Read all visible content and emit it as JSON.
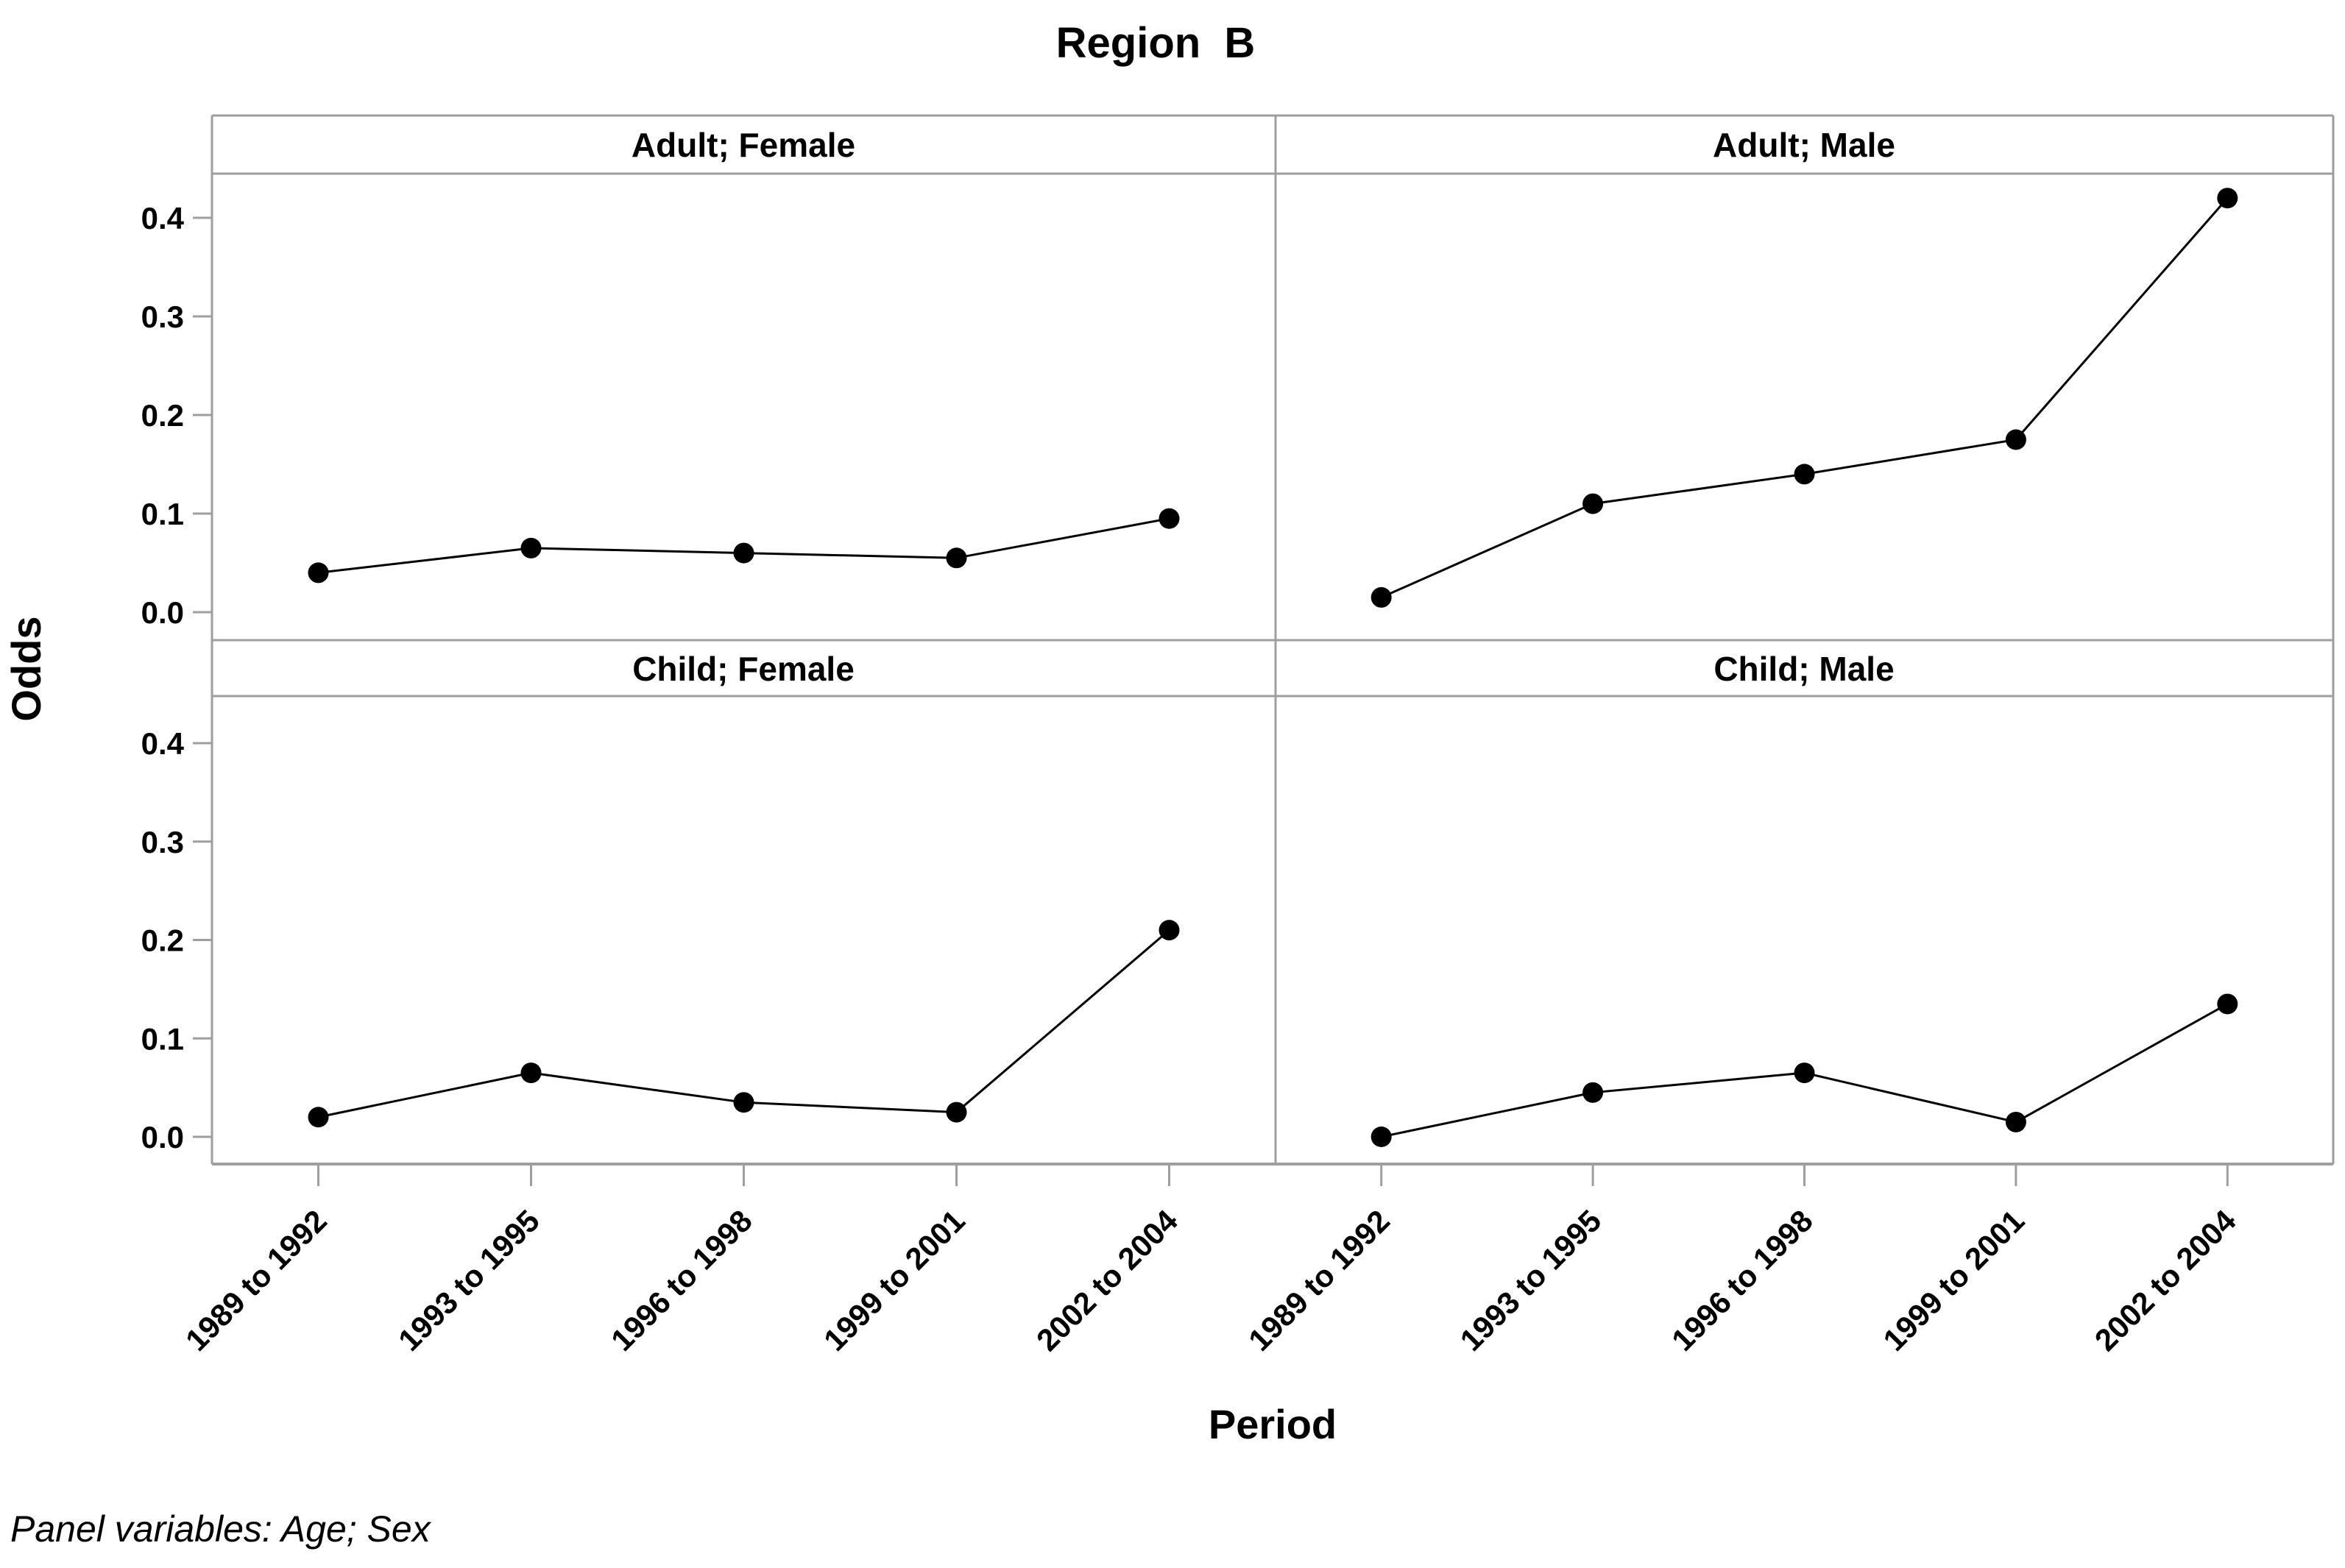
{
  "chart_data": {
    "type": "line",
    "layout": "2x2-trellis-panel-plot",
    "title": "Region  B",
    "xlabel": "Period",
    "ylabel": "Odds",
    "panel_note": "Panel variables: Age; Sex",
    "categories": [
      "1989 to 1992",
      "1993 to 1995",
      "1996 to 1998",
      "1999 to 2001",
      "2002 to 2004"
    ],
    "ylim": [
      -0.03,
      0.45
    ],
    "yticks": [
      0.4,
      0.3,
      0.2,
      0.1,
      0.0
    ],
    "ytick_labels": [
      "0.4",
      "0.3",
      "0.2",
      "0.1",
      "0.0"
    ],
    "grid": false,
    "legend_position": "none",
    "marker": "filled-circle",
    "line_color": "#000000",
    "frame_color": "#9e9e9e",
    "series": [
      {
        "name": "Adult; Female",
        "row": 0,
        "col": 0,
        "values": [
          0.04,
          0.065,
          0.06,
          0.055,
          0.095
        ]
      },
      {
        "name": "Adult; Male",
        "row": 0,
        "col": 1,
        "values": [
          0.015,
          0.11,
          0.14,
          0.175,
          0.42
        ]
      },
      {
        "name": "Child; Female",
        "row": 1,
        "col": 0,
        "values": [
          0.02,
          0.065,
          0.035,
          0.025,
          0.21
        ]
      },
      {
        "name": "Child; Male",
        "row": 1,
        "col": 1,
        "values": [
          0.0,
          0.045,
          0.065,
          0.015,
          0.135
        ]
      }
    ]
  }
}
